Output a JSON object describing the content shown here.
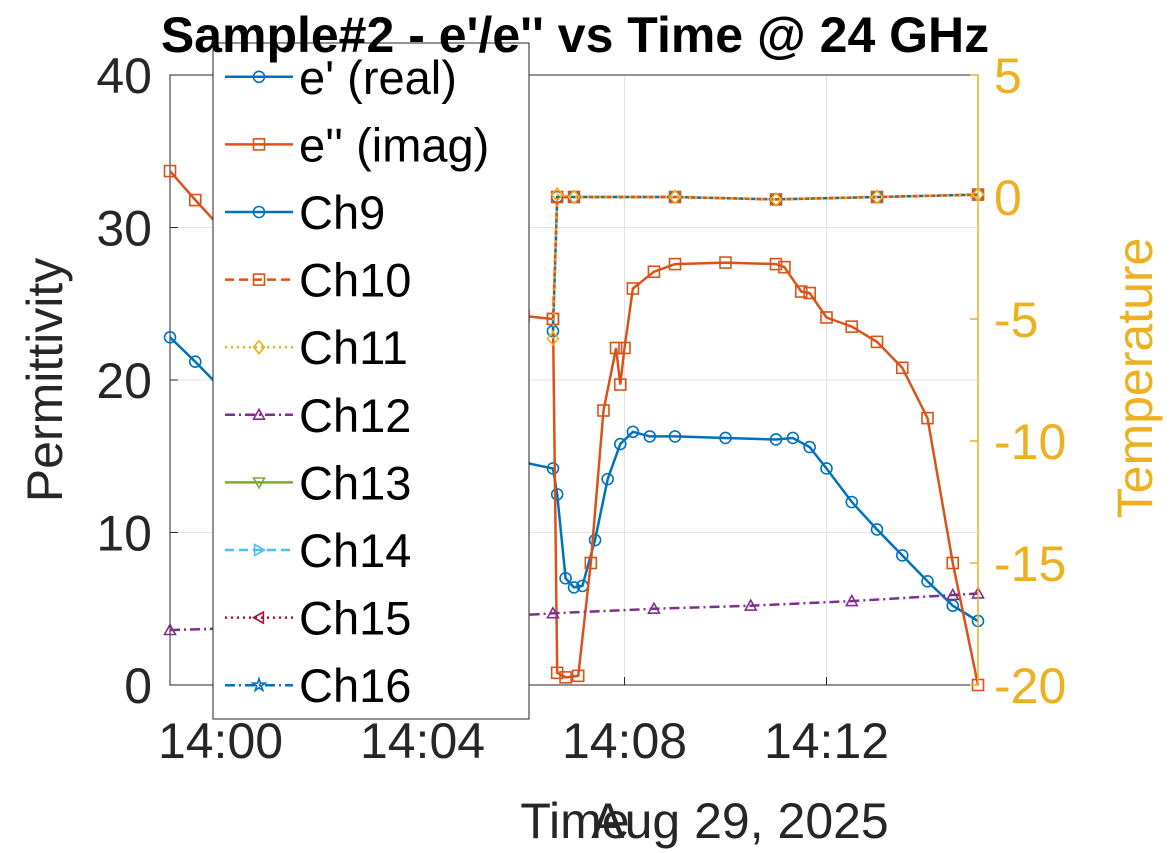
{
  "chart_data": {
    "type": "line",
    "title": "Sample#2 - e'/e'' vs Time @ 24 GHz",
    "xlabel": "Time",
    "date_label": "Aug 29, 2025",
    "ylabel_left": "Permittivity",
    "ylabel_right": "Temperature",
    "xlim": [
      "13:59",
      "14:15"
    ],
    "ylim_left": [
      0,
      40
    ],
    "ylim_right": [
      -20,
      5
    ],
    "x_ticks": [
      "14:00",
      "14:04",
      "14:08",
      "14:12"
    ],
    "y_ticks_left": [
      "0",
      "10",
      "20",
      "30",
      "40"
    ],
    "y_ticks_right": [
      "-20",
      "-15",
      "-10",
      "-5",
      "0",
      "5"
    ],
    "grid": true,
    "legend_position": "top-left",
    "colors": {
      "blue": "#0072bd",
      "orange": "#d95319",
      "yellow": "#edb120",
      "purple": "#7e2f8e",
      "green": "#77ac30",
      "cyan": "#4dbeee",
      "darkred": "#a2142f",
      "axis_right": "#edb120"
    },
    "series": [
      {
        "name": "e' (real)",
        "axis": "left",
        "color": "#0072bd",
        "line": "solid",
        "marker": "circle",
        "x": [
          "13:59",
          "13:59:30",
          "14:00",
          "14:01",
          "14:02",
          "14:03",
          "14:04",
          "14:05",
          "14:06",
          "14:06:35",
          "14:06:40",
          "14:06:50",
          "14:07:00",
          "14:07:10",
          "14:07:25",
          "14:07:40",
          "14:07:55",
          "14:08:10",
          "14:08:30",
          "14:09",
          "14:10",
          "14:11",
          "14:11:20",
          "14:11:40",
          "14:12",
          "14:12:30",
          "14:13",
          "14:13:30",
          "14:14",
          "14:14:30",
          "14:15"
        ],
        "y": [
          22.8,
          21.2,
          19.5,
          18.2,
          17.1,
          16.2,
          15.6,
          15.0,
          14.6,
          14.2,
          12.5,
          7.0,
          6.4,
          6.5,
          9.5,
          13.5,
          15.8,
          16.6,
          16.3,
          16.3,
          16.2,
          16.1,
          16.2,
          15.6,
          14.2,
          12.0,
          10.2,
          8.5,
          6.8,
          5.2,
          4.2
        ]
      },
      {
        "name": "e'' (imag)",
        "axis": "left",
        "color": "#d95319",
        "line": "solid",
        "marker": "square",
        "x": [
          "13:59",
          "13:59:30",
          "14:00",
          "14:01",
          "14:02",
          "14:03",
          "14:04",
          "14:05",
          "14:06",
          "14:06:35",
          "14:06:40",
          "14:06:50",
          "14:07:05",
          "14:07:20",
          "14:07:35",
          "14:07:50",
          "14:07:55",
          "14:08:00",
          "14:08:10",
          "14:08:35",
          "14:09",
          "14:10",
          "14:11",
          "14:11:10",
          "14:11:30",
          "14:11:40",
          "14:12",
          "14:12:30",
          "14:13",
          "14:13:30",
          "14:14",
          "14:14:30",
          "14:15"
        ],
        "y": [
          33.7,
          31.8,
          30.0,
          28.4,
          27.2,
          26.3,
          25.5,
          24.8,
          24.2,
          24.0,
          0.8,
          0.5,
          0.6,
          8.0,
          18.0,
          22.1,
          19.7,
          22.1,
          26.0,
          27.1,
          27.6,
          27.7,
          27.6,
          27.4,
          25.8,
          25.7,
          24.1,
          23.5,
          22.5,
          20.8,
          17.5,
          8.0,
          0.0
        ]
      },
      {
        "name": "Ch9",
        "axis": "right",
        "color": "#0072bd",
        "line": "solid",
        "marker": "circle",
        "x": [
          "14:06:35",
          "14:06:40",
          "14:07",
          "14:09",
          "14:11",
          "14:13",
          "14:15"
        ],
        "y": [
          -5.5,
          0.0,
          0.0,
          0.0,
          -0.1,
          0.0,
          0.1
        ]
      },
      {
        "name": "Ch10",
        "axis": "right",
        "color": "#d95319",
        "line": "dashed",
        "marker": "square",
        "x": [
          "14:06:35",
          "14:06:40",
          "14:07",
          "14:09",
          "14:11",
          "14:13",
          "14:15"
        ],
        "y": [
          -5.0,
          0.0,
          0.0,
          0.0,
          -0.1,
          0.0,
          0.1
        ]
      },
      {
        "name": "Ch11",
        "axis": "right",
        "color": "#edb120",
        "line": "dotted",
        "marker": "diamond",
        "x": [
          "14:06:35",
          "14:06:40",
          "14:07",
          "14:09",
          "14:11",
          "14:13",
          "14:15"
        ],
        "y": [
          -5.8,
          0.1,
          0.0,
          0.0,
          -0.1,
          0.0,
          0.1
        ]
      },
      {
        "name": "Ch12",
        "axis": "left",
        "color": "#7e2f8e",
        "line": "dashdot",
        "marker": "triangle-up",
        "x": [
          "13:59",
          "14:00",
          "14:02",
          "14:04",
          "14:06:35",
          "14:08:35",
          "14:10:30",
          "14:12:30",
          "14:14:30",
          "14:15"
        ],
        "y": [
          3.6,
          3.7,
          3.9,
          4.2,
          4.7,
          5.0,
          5.2,
          5.5,
          5.9,
          6.0
        ]
      },
      {
        "name": "Ch13",
        "axis": "right",
        "color": "#77ac30",
        "line": "solid",
        "marker": "triangle-down",
        "x": [],
        "y": []
      },
      {
        "name": "Ch14",
        "axis": "right",
        "color": "#4dbeee",
        "line": "dashed",
        "marker": "triangle-right",
        "x": [],
        "y": []
      },
      {
        "name": "Ch15",
        "axis": "right",
        "color": "#a2142f",
        "line": "dotted",
        "marker": "triangle-left",
        "x": [],
        "y": []
      },
      {
        "name": "Ch16",
        "axis": "right",
        "color": "#0072bd",
        "line": "dashdot",
        "marker": "star",
        "x": [],
        "y": []
      }
    ]
  }
}
